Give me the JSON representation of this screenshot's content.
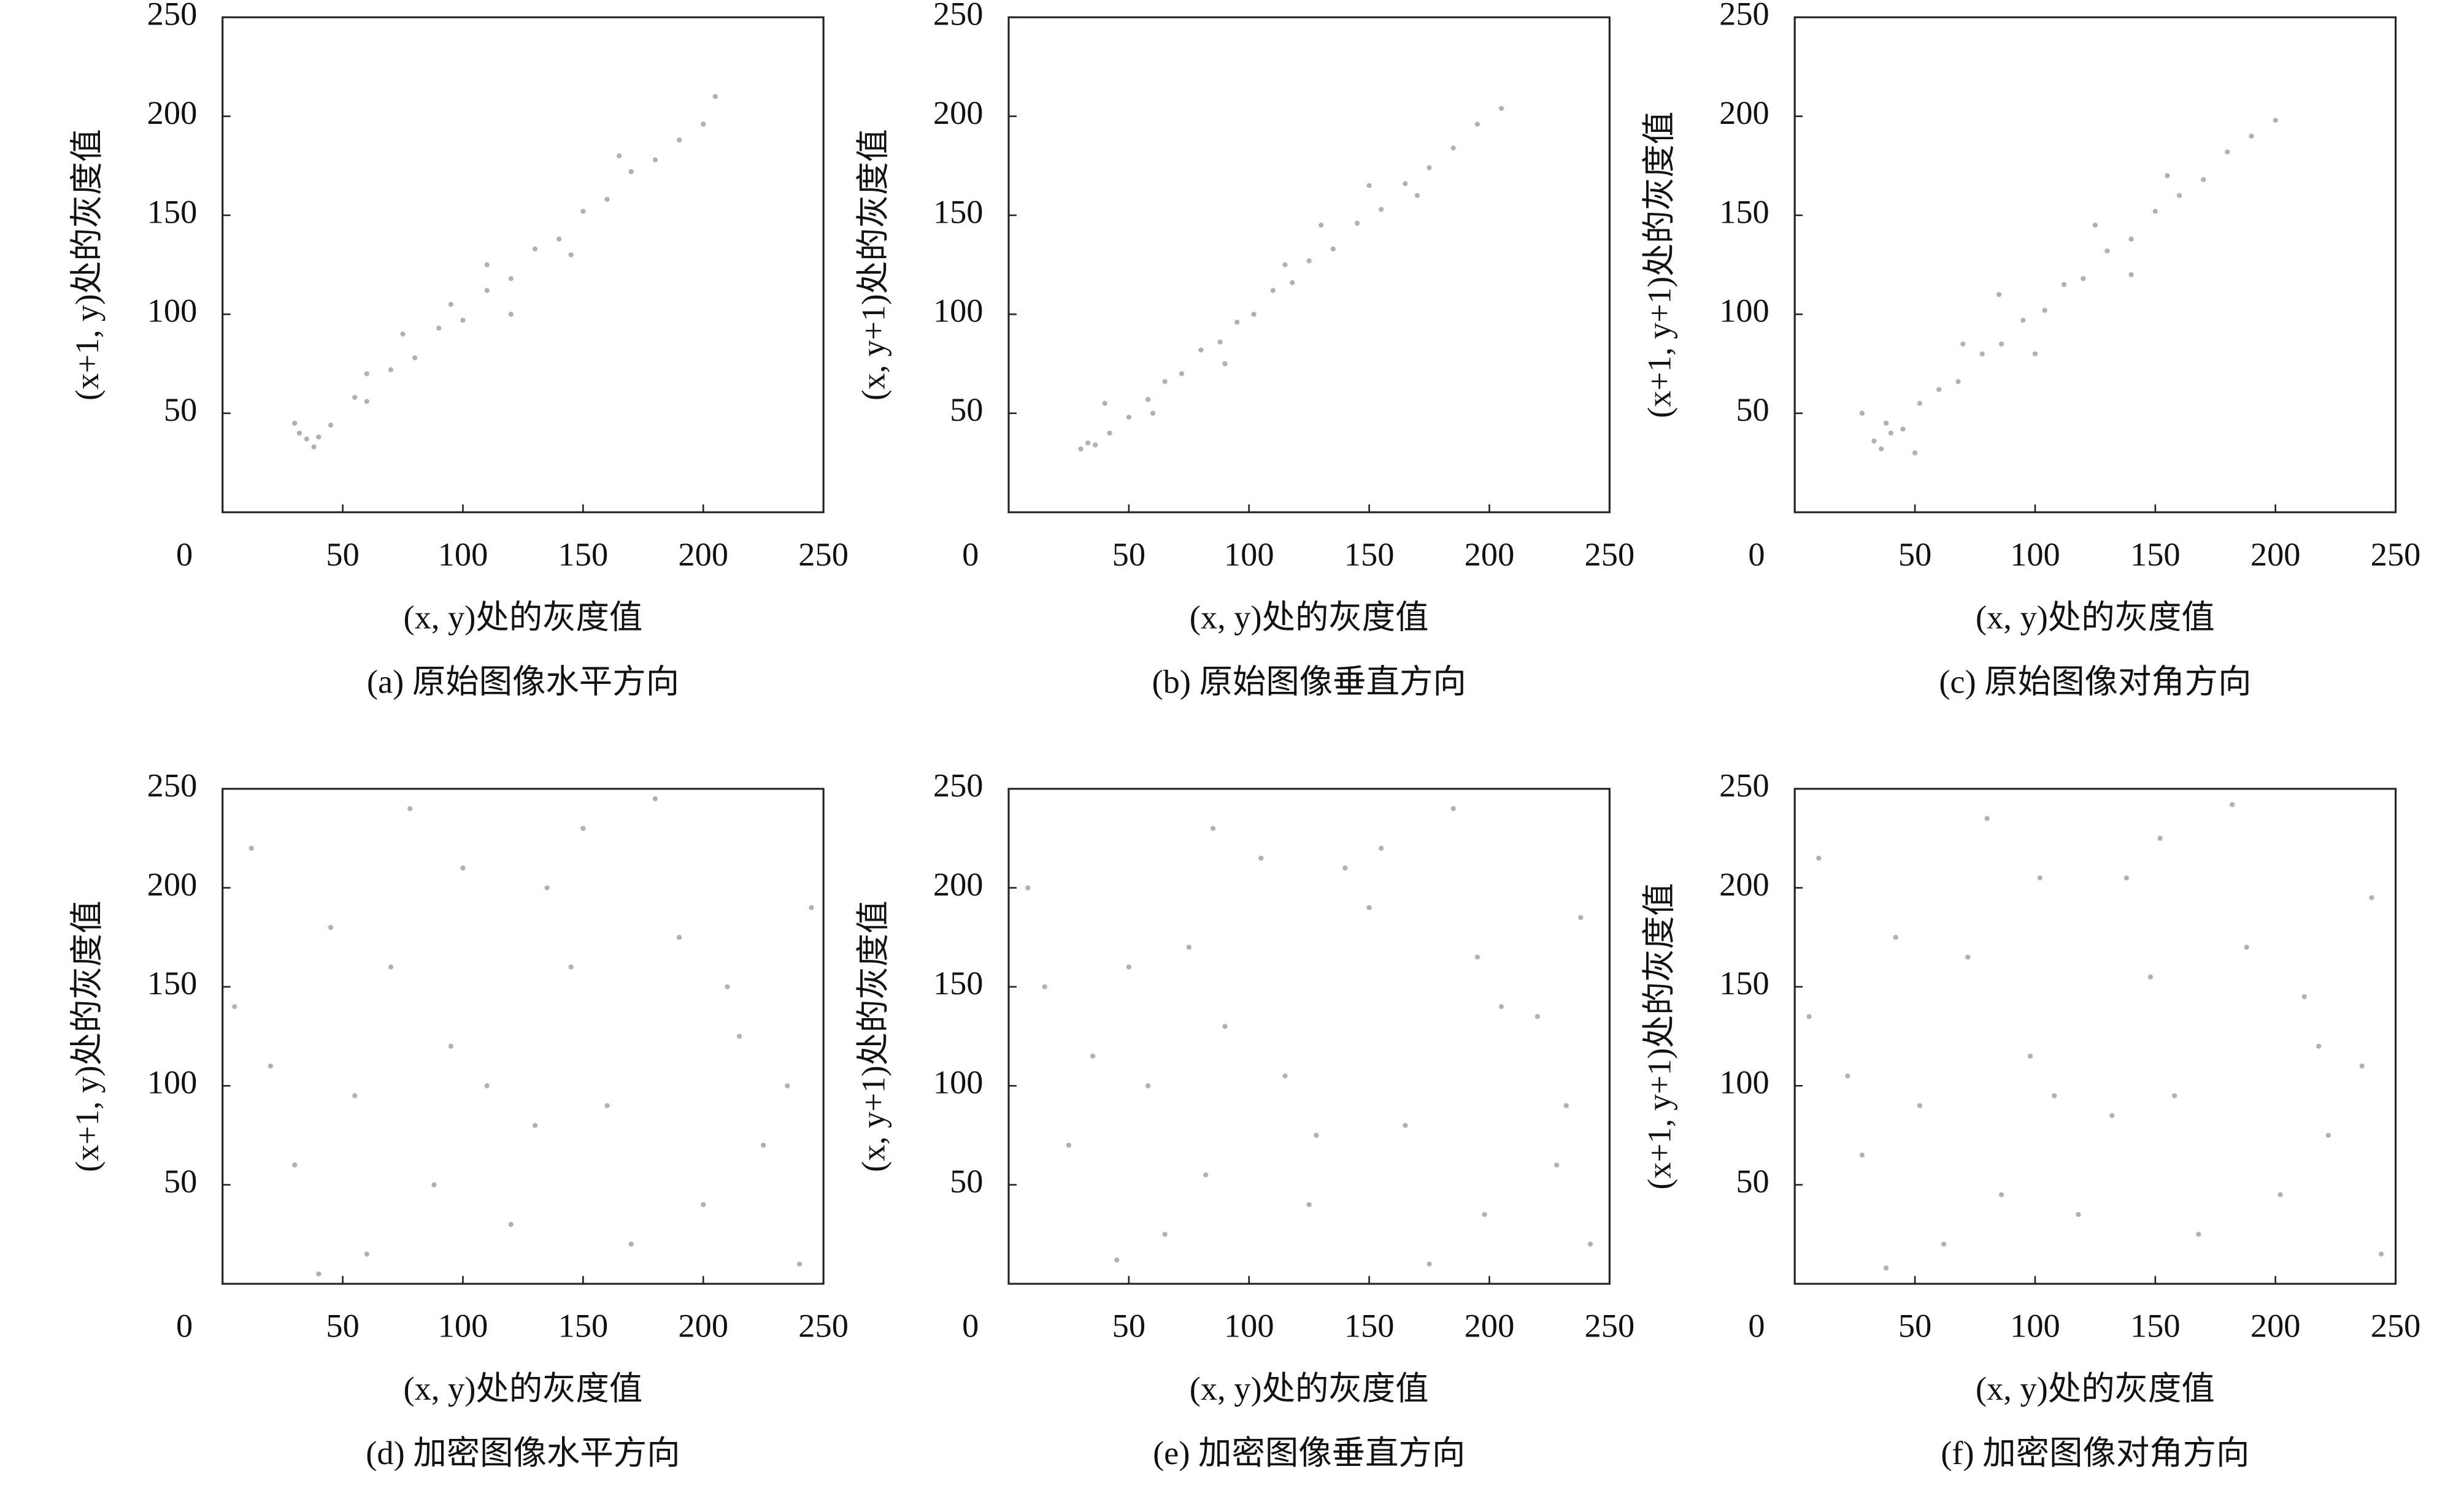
{
  "chart_data": [
    {
      "type": "scatter",
      "title": "(a) 原始图像水平方向",
      "x_label": "(x, y)处的灰度值",
      "y_label": "(x+1, y)处的灰度值",
      "color": "#a9b3bd",
      "x": [
        35,
        38,
        32,
        40,
        45,
        55,
        60,
        70,
        80,
        90,
        100,
        110,
        120,
        130,
        140,
        150,
        160,
        170,
        180,
        190,
        200,
        30,
        75,
        120,
        165,
        60,
        110,
        95,
        145,
        205
      ],
      "y": [
        37,
        33,
        40,
        38,
        44,
        58,
        56,
        72,
        78,
        93,
        97,
        112,
        118,
        133,
        138,
        152,
        158,
        172,
        178,
        188,
        196,
        45,
        90,
        100,
        180,
        70,
        125,
        105,
        130,
        210
      ],
      "xlim": [
        0,
        250
      ],
      "ylim": [
        0,
        250
      ],
      "xticks": [
        0,
        50,
        100,
        150,
        200,
        250
      ],
      "yticks": [
        50,
        100,
        150,
        200,
        250
      ]
    },
    {
      "type": "scatter",
      "title": "(b) 原始图像垂直方向",
      "x_label": "(x, y)处的灰度值",
      "y_label": "(x, y+1)处的灰度值",
      "color": "#a9b3bd",
      "x": [
        30,
        33,
        36,
        42,
        50,
        58,
        65,
        72,
        80,
        88,
        95,
        102,
        110,
        118,
        125,
        135,
        145,
        155,
        165,
        175,
        185,
        195,
        205,
        40,
        90,
        130,
        170,
        60,
        115,
        150
      ],
      "y": [
        32,
        35,
        34,
        40,
        48,
        57,
        66,
        70,
        82,
        86,
        96,
        100,
        112,
        116,
        127,
        133,
        146,
        153,
        166,
        174,
        184,
        196,
        204,
        55,
        75,
        145,
        160,
        50,
        125,
        165
      ],
      "xlim": [
        0,
        250
      ],
      "ylim": [
        0,
        250
      ],
      "xticks": [
        0,
        50,
        100,
        150,
        200,
        250
      ],
      "yticks": [
        50,
        100,
        150,
        200,
        250
      ]
    },
    {
      "type": "scatter",
      "title": "(c) 原始图像对角方向",
      "x_label": "(x, y)处的灰度值",
      "y_label": "(x+1, y+1)处的灰度值",
      "color": "#a9b3bd",
      "x": [
        33,
        36,
        40,
        38,
        45,
        52,
        60,
        68,
        78,
        86,
        95,
        104,
        112,
        120,
        130,
        140,
        150,
        160,
        170,
        180,
        190,
        200,
        28,
        70,
        100,
        125,
        155,
        50,
        85,
        140
      ],
      "y": [
        36,
        32,
        40,
        45,
        42,
        55,
        62,
        66,
        80,
        85,
        97,
        102,
        115,
        118,
        132,
        138,
        152,
        160,
        168,
        182,
        190,
        198,
        50,
        85,
        80,
        145,
        170,
        30,
        110,
        120
      ],
      "xlim": [
        0,
        250
      ],
      "ylim": [
        0,
        250
      ],
      "xticks": [
        0,
        50,
        100,
        150,
        200,
        250
      ],
      "yticks": [
        50,
        100,
        150,
        200,
        250
      ]
    },
    {
      "type": "scatter",
      "title": "(d) 加密图像水平方向",
      "x_label": "(x, y)处的灰度值",
      "y_label": "(x+1, y)处的灰度值",
      "color": "#a9b3bd",
      "x": [
        12,
        45,
        78,
        120,
        160,
        210,
        240,
        30,
        95,
        135,
        180,
        225,
        5,
        60,
        110,
        150,
        200,
        245,
        20,
        70,
        130,
        170,
        215,
        88,
        190,
        40,
        145,
        235,
        100,
        55
      ],
      "y": [
        220,
        180,
        240,
        30,
        90,
        150,
        10,
        60,
        120,
        200,
        245,
        70,
        140,
        15,
        100,
        230,
        40,
        190,
        110,
        160,
        80,
        20,
        125,
        50,
        175,
        5,
        160,
        100,
        210,
        95
      ],
      "xlim": [
        0,
        250
      ],
      "ylim": [
        0,
        250
      ],
      "xticks": [
        0,
        50,
        100,
        150,
        200,
        250
      ],
      "yticks": [
        50,
        100,
        150,
        200,
        250
      ]
    },
    {
      "type": "scatter",
      "title": "(e) 加密图像垂直方向",
      "x_label": "(x, y)处的灰度值",
      "y_label": "(x, y+1)处的灰度值",
      "color": "#a9b3bd",
      "x": [
        8,
        50,
        85,
        125,
        165,
        205,
        242,
        25,
        90,
        140,
        185,
        228,
        15,
        65,
        115,
        155,
        198,
        238,
        35,
        75,
        128,
        175,
        220,
        82,
        195,
        45,
        150,
        232,
        105,
        58
      ],
      "y": [
        200,
        160,
        230,
        40,
        80,
        140,
        20,
        70,
        130,
        210,
        240,
        60,
        150,
        25,
        105,
        220,
        35,
        185,
        115,
        170,
        75,
        10,
        135,
        55,
        165,
        12,
        190,
        90,
        215,
        100
      ],
      "xlim": [
        0,
        250
      ],
      "ylim": [
        0,
        250
      ],
      "xticks": [
        0,
        50,
        100,
        150,
        200,
        250
      ],
      "yticks": [
        50,
        100,
        150,
        200,
        250
      ]
    },
    {
      "type": "scatter",
      "title": "(f) 加密图像对角方向",
      "x_label": "(x, y)处的灰度值",
      "y_label": "(x+1, y+1)处的灰度值",
      "color": "#a9b3bd",
      "x": [
        10,
        42,
        80,
        118,
        158,
        212,
        244,
        28,
        98,
        138,
        182,
        222,
        6,
        62,
        108,
        152,
        202,
        240,
        22,
        72,
        132,
        168,
        218,
        86,
        188,
        38,
        148,
        236,
        102,
        52
      ],
      "y": [
        215,
        175,
        235,
        35,
        95,
        145,
        15,
        65,
        115,
        205,
        242,
        75,
        135,
        20,
        95,
        225,
        45,
        195,
        105,
        165,
        85,
        25,
        120,
        45,
        170,
        8,
        155,
        110,
        205,
        90
      ],
      "xlim": [
        0,
        250
      ],
      "ylim": [
        0,
        250
      ],
      "xticks": [
        0,
        50,
        100,
        150,
        200,
        250
      ],
      "yticks": [
        50,
        100,
        150,
        200,
        250
      ]
    }
  ]
}
